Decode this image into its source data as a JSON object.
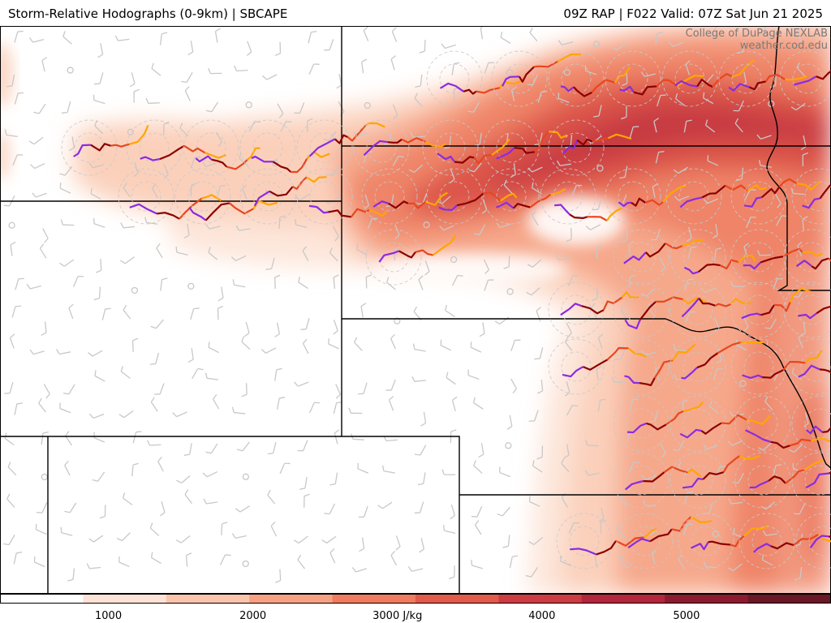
{
  "header": {
    "left_title": "Storm-Relative Hodographs (0-9km) | SBCAPE",
    "right_title": "09Z RAP | F022 Valid: 07Z Sat Jun 21 2025"
  },
  "credit": {
    "line1": "College of DuPage NEXLAB",
    "line2": "weather.cod.edu"
  },
  "colorbar": {
    "ticks": [
      {
        "value": 1000,
        "label": "1000"
      },
      {
        "value": 2000,
        "label": "2000"
      },
      {
        "value": 3000,
        "label": "3000 J/kg"
      },
      {
        "value": 4000,
        "label": "4000"
      },
      {
        "value": 5000,
        "label": "5000"
      }
    ],
    "min": 250,
    "max": 6000,
    "colors": [
      "#ffffff",
      "#fde3d6",
      "#fbc5ad",
      "#f7a184",
      "#ef7c5f",
      "#e25a4b",
      "#cd3c42",
      "#b3263b",
      "#8c1b30",
      "#6a1726"
    ]
  },
  "hodograph_colors": [
    "#8a2be2",
    "#8b0000",
    "#e8461e",
    "#ffa500"
  ]
}
